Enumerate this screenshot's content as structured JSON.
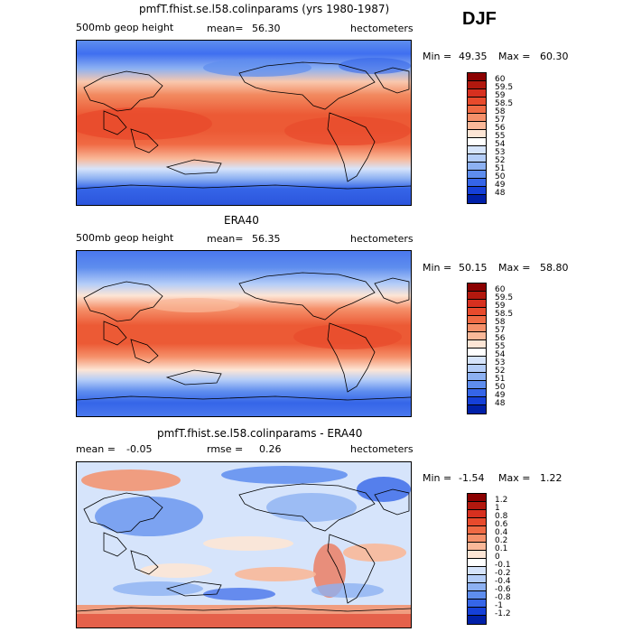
{
  "season": "DJF",
  "panels": [
    {
      "title": "pmfT.fhist.se.l58.colinparams (yrs 1980-1987)",
      "left_label": "500mb geop height",
      "mean_label": "mean=",
      "mean_value": "56.30",
      "units": "hectometers",
      "minmax": {
        "min_label": "Min =",
        "min_value": "49.35",
        "max_label": "Max =",
        "max_value": "60.30"
      },
      "colorbar": {
        "labels": [
          "60",
          "59.5",
          "59",
          "58.5",
          "58",
          "57",
          "56",
          "55",
          "54",
          "53",
          "52",
          "51",
          "50",
          "49",
          "48"
        ],
        "colors": [
          "#8b0000",
          "#b2180e",
          "#d7301f",
          "#e84a2c",
          "#f06a44",
          "#f5906a",
          "#f9b899",
          "#fde5d5",
          "#ffffff",
          "#d6e4fb",
          "#b4cdf8",
          "#8db1f2",
          "#5e8dee",
          "#3565e8",
          "#1540d8",
          "#0020a8"
        ]
      },
      "map_style": "model"
    },
    {
      "title": "ERA40",
      "left_label": "500mb geop height",
      "mean_label": "mean=",
      "mean_value": "56.35",
      "units": "hectometers",
      "minmax": {
        "min_label": "Min =",
        "min_value": "50.15",
        "max_label": "Max =",
        "max_value": "58.80"
      },
      "colorbar": {
        "labels": [
          "60",
          "59.5",
          "59",
          "58.5",
          "58",
          "57",
          "56",
          "55",
          "54",
          "53",
          "52",
          "51",
          "50",
          "49",
          "48"
        ],
        "colors": [
          "#8b0000",
          "#b2180e",
          "#d7301f",
          "#e84a2c",
          "#f06a44",
          "#f5906a",
          "#f9b899",
          "#fde5d5",
          "#ffffff",
          "#d6e4fb",
          "#b4cdf8",
          "#8db1f2",
          "#5e8dee",
          "#3565e8",
          "#1540d8",
          "#0020a8"
        ]
      },
      "map_style": "obs"
    },
    {
      "title": "pmfT.fhist.se.l58.colinparams - ERA40",
      "left_label": "mean =",
      "left_value": "-0.05",
      "rmse_label": "rmse =",
      "rmse_value": "0.26",
      "units": "hectometers",
      "minmax": {
        "min_label": "Min =",
        "min_value": "-1.54",
        "max_label": "Max =",
        "max_value": "1.22"
      },
      "colorbar": {
        "labels": [
          "1.2",
          "1",
          "0.8",
          "0.6",
          "0.4",
          "0.2",
          "0.1",
          "0",
          "-0.1",
          "-0.2",
          "-0.4",
          "-0.6",
          "-0.8",
          "-1",
          "-1.2"
        ],
        "colors": [
          "#8b0000",
          "#b2180e",
          "#d7301f",
          "#e84a2c",
          "#f06a44",
          "#f5906a",
          "#f9b899",
          "#fde5d5",
          "#ffffff",
          "#d6e4fb",
          "#b4cdf8",
          "#8db1f2",
          "#5e8dee",
          "#3565e8",
          "#1540d8",
          "#0020a8"
        ]
      },
      "map_style": "diff"
    }
  ]
}
